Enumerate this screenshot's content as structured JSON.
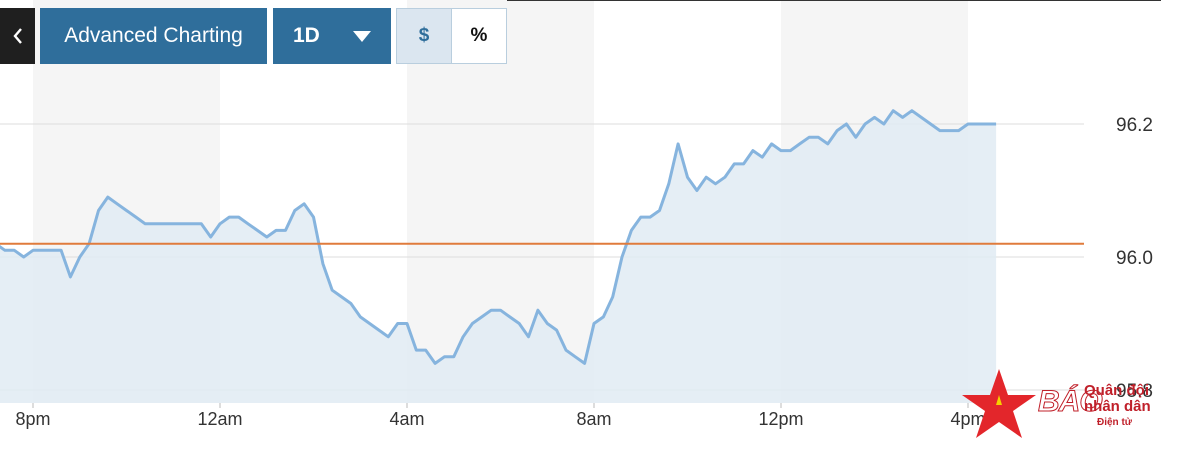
{
  "toolbar": {
    "back_icon": "chevron-left-icon",
    "title_label": "Advanced Charting",
    "range_label": "1D",
    "range_icon": "caret-down-icon",
    "currency_toggle": [
      {
        "label": "$",
        "active": true
      },
      {
        "label": "%",
        "active": false
      }
    ]
  },
  "colors": {
    "button_bg": "#2f6e9b",
    "line": "#86b4de",
    "area": "#e1ebf3",
    "reference_line": "#e07b3c",
    "band": "#f5f5f5"
  },
  "watermark": {
    "brand": "BÁO",
    "line1": "Quân đội",
    "line2": "nhân dân",
    "line3": "Điện tử",
    "icon": "red-star-logo-icon"
  },
  "chart_data": {
    "type": "area",
    "reference_value": 96.02,
    "ylim": [
      95.78,
      96.32
    ],
    "yticks": [
      95.8,
      96.0,
      96.2
    ],
    "ytick_labels": [
      "95.8",
      "96.0",
      "96.2"
    ],
    "x_ticks": [
      "8pm",
      "12am",
      "4am",
      "8am",
      "12pm",
      "4pm"
    ],
    "grid": "horizontal at y ticks; alternating vertical time bands",
    "x": [
      0,
      0.2,
      0.4,
      0.6,
      0.8,
      1.0,
      1.2,
      1.4,
      1.6,
      1.8,
      2.0,
      2.2,
      2.4,
      2.6,
      2.8,
      3.0,
      3.2,
      3.4,
      3.6,
      3.8,
      4.0,
      4.2,
      4.4,
      4.6,
      4.8,
      5.0,
      5.2,
      5.4,
      5.6,
      5.8,
      6.0,
      6.2,
      6.4,
      6.6,
      6.8,
      7.0,
      7.2,
      7.4,
      7.6,
      7.8,
      8.0,
      8.2,
      8.4,
      8.6,
      8.8,
      9.0,
      9.2,
      9.4,
      9.6,
      9.8,
      10.0,
      10.2,
      10.4,
      10.6,
      10.8,
      11.0,
      11.2,
      11.4,
      11.6,
      11.8,
      12.0,
      12.2,
      12.4,
      12.6,
      12.8,
      13.0,
      13.2,
      13.4,
      13.6,
      13.8,
      14.0,
      14.2,
      14.4,
      14.6,
      14.8,
      15.0,
      15.2,
      15.4,
      15.6,
      15.8,
      16.0,
      16.2,
      16.4,
      16.6,
      16.8,
      17.0,
      17.2,
      17.4,
      17.6,
      17.8,
      18.0,
      18.2,
      18.4,
      18.6,
      18.8,
      19.0,
      19.2,
      19.4,
      19.6,
      19.8,
      20.0,
      20.2,
      20.4,
      20.6,
      20.8,
      21.0,
      21.2,
      21.4,
      21.6
    ],
    "values": [
      96.03,
      96.02,
      96.01,
      96.01,
      96.0,
      96.01,
      96.01,
      96.01,
      96.01,
      95.97,
      96.0,
      96.02,
      96.07,
      96.09,
      96.08,
      96.07,
      96.06,
      96.05,
      96.05,
      96.05,
      96.05,
      96.05,
      96.05,
      96.05,
      96.03,
      96.05,
      96.06,
      96.06,
      96.05,
      96.04,
      96.03,
      96.04,
      96.04,
      96.07,
      96.08,
      96.06,
      95.99,
      95.95,
      95.94,
      95.93,
      95.91,
      95.9,
      95.89,
      95.88,
      95.9,
      95.9,
      95.86,
      95.86,
      95.84,
      95.85,
      95.85,
      95.88,
      95.9,
      95.91,
      95.92,
      95.92,
      95.91,
      95.9,
      95.88,
      95.92,
      95.9,
      95.89,
      95.86,
      95.85,
      95.84,
      95.9,
      95.91,
      95.94,
      96.0,
      96.04,
      96.06,
      96.06,
      96.07,
      96.11,
      96.17,
      96.12,
      96.1,
      96.12,
      96.11,
      96.12,
      96.14,
      96.14,
      96.16,
      96.15,
      96.17,
      96.16,
      96.16,
      96.17,
      96.18,
      96.18,
      96.17,
      96.19,
      96.2,
      96.18,
      96.2,
      96.21,
      96.2,
      96.22,
      96.21,
      96.22,
      96.21,
      96.2,
      96.19,
      96.19,
      96.19,
      96.2,
      96.2,
      96.2,
      96.2
    ]
  }
}
